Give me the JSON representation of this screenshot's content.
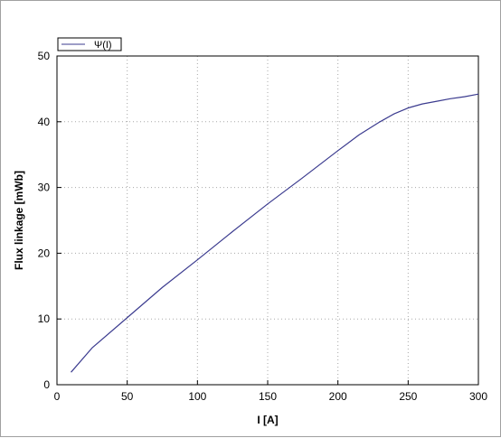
{
  "chart_data": {
    "type": "line",
    "title": "",
    "xlabel": "I [A]",
    "ylabel": "Flux linkage [mWb]",
    "xlim": [
      0,
      300
    ],
    "ylim": [
      0,
      50
    ],
    "xticks": [
      0,
      50,
      100,
      150,
      200,
      250,
      300
    ],
    "yticks": [
      0,
      10,
      20,
      30,
      40,
      50
    ],
    "grid": true,
    "legend_position": "top-left",
    "series": [
      {
        "name": "Ψ(I)",
        "color": "#3b3b8f",
        "x": [
          10,
          25,
          50,
          75,
          100,
          125,
          150,
          175,
          200,
          215,
          230,
          240,
          250,
          260,
          270,
          280,
          290,
          300
        ],
        "y": [
          1.9,
          5.6,
          10.2,
          14.8,
          19.0,
          23.3,
          27.5,
          31.5,
          35.6,
          38.0,
          40.0,
          41.2,
          42.1,
          42.7,
          43.1,
          43.5,
          43.8,
          44.2
        ]
      }
    ]
  }
}
